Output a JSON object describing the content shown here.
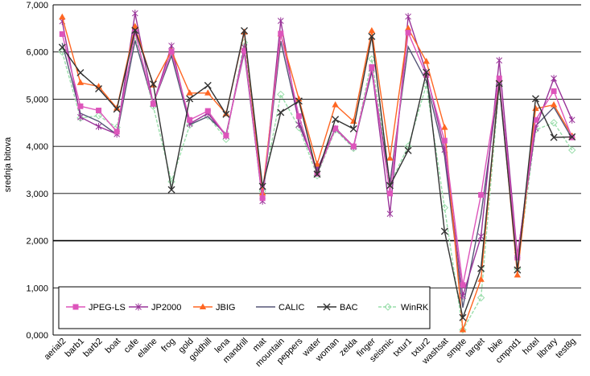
{
  "chart_data": {
    "type": "line",
    "ylabel": "srednja bitova",
    "ylim": [
      0,
      7000
    ],
    "yticks": [
      "0,000",
      "1,000",
      "2,000",
      "3,000",
      "4,000",
      "5,000",
      "6,000",
      "7,000"
    ],
    "grid": true,
    "legend_position": "bottom-left inside",
    "categories": [
      "aerial2",
      "barb1",
      "barb2",
      "boat",
      "cafe",
      "elaine",
      "frog",
      "gold",
      "goldhill",
      "lena",
      "mandrill",
      "mat",
      "mountain",
      "peppers",
      "water",
      "woman",
      "zelda",
      "finger",
      "seismic",
      "txtur1",
      "txtur2",
      "washsat",
      "smpte",
      "target",
      "bike",
      "cmpnd1",
      "hotel",
      "library",
      "test8g"
    ],
    "series": [
      {
        "name": "JPEG-LS",
        "color": "#dd55bb",
        "marker": "square",
        "values": [
          6380,
          4850,
          4760,
          4310,
          6420,
          4900,
          6010,
          4560,
          4750,
          4230,
          6030,
          2900,
          6390,
          4640,
          3420,
          4380,
          4000,
          5680,
          3000,
          6410,
          5510,
          4120,
          1060,
          2970,
          5440,
          1640,
          4560,
          5170,
          4190
        ]
      },
      {
        "name": "JP2000",
        "color": "#993399",
        "marker": "star",
        "values": [
          6650,
          4620,
          4420,
          4260,
          6820,
          4900,
          6130,
          4480,
          4700,
          4220,
          6100,
          2840,
          6660,
          4460,
          3510,
          4370,
          3990,
          5650,
          2570,
          6750,
          5560,
          3930,
          830,
          2090,
          5820,
          1690,
          4380,
          5440,
          4560
        ]
      },
      {
        "name": "JBIG",
        "color": "#ff6622",
        "marker": "triangle",
        "values": [
          6740,
          5350,
          5270,
          4810,
          6540,
          5300,
          6020,
          5130,
          5130,
          4690,
          6420,
          3010,
          6380,
          5000,
          3620,
          4880,
          4530,
          6450,
          3750,
          6500,
          5800,
          4400,
          110,
          1180,
          5420,
          1270,
          4800,
          4880,
          4220
        ]
      },
      {
        "name": "CALIC",
        "color": "#555577",
        "marker": "none",
        "values": [
          6190,
          4700,
          4530,
          4250,
          6240,
          4910,
          5920,
          4460,
          4630,
          4260,
          5990,
          2880,
          6230,
          4520,
          3490,
          4390,
          4000,
          5580,
          3230,
          6110,
          5380,
          3800,
          580,
          2550,
          5380,
          1660,
          4430,
          4830,
          4170
        ]
      },
      {
        "name": "BAC",
        "color": "#333333",
        "marker": "x",
        "values": [
          6100,
          5560,
          5220,
          4790,
          6460,
          5320,
          3080,
          5010,
          5290,
          4680,
          6450,
          3150,
          4720,
          4960,
          3410,
          4570,
          4370,
          6330,
          3170,
          3910,
          5570,
          2200,
          370,
          1410,
          5330,
          1380,
          5010,
          4190,
          4200
        ]
      },
      {
        "name": "WinRK",
        "color": "#99ddaa",
        "marker": "diamond",
        "values": [
          6000,
          4600,
          4650,
          4400,
          6300,
          4850,
          3250,
          4450,
          4640,
          4150,
          6200,
          3050,
          5100,
          4400,
          3380,
          4350,
          3960,
          5850,
          3200,
          4000,
          5300,
          2700,
          110,
          790,
          5300,
          1400,
          4350,
          4500,
          3920
        ]
      }
    ]
  }
}
